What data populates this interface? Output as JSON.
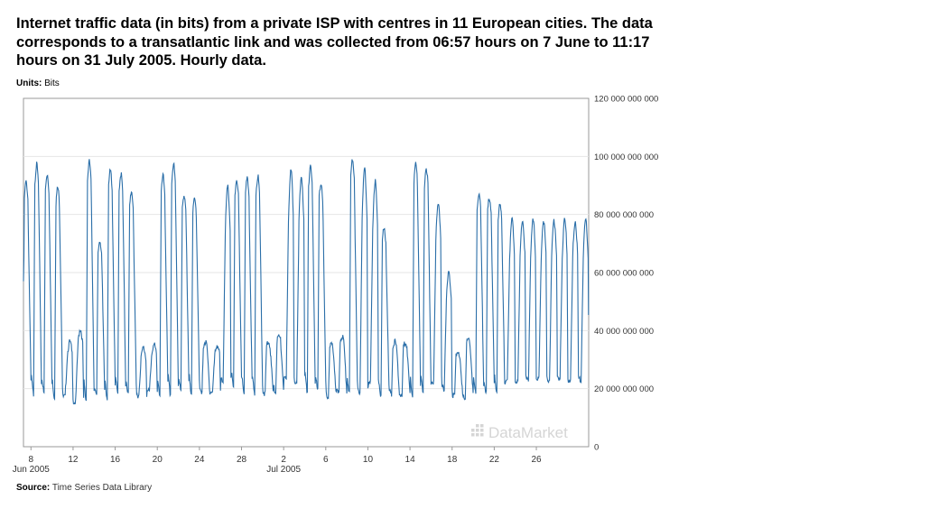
{
  "title": "Internet traffic data (in bits) from a private ISP with centres in 11 European cities. The data corresponds to a transatlantic link and was collected from 06:57 hours on 7 June to 11:17 hours on 31 July 2005. Hourly data.",
  "units_label": "Units:",
  "units_value": "Bits",
  "source_label": "Source:",
  "source_value": "Time Series Data Library",
  "watermark": "DataMarket",
  "colors": {
    "line": "#2a6ea8",
    "grid": "#e6e6e6",
    "axis": "#999999",
    "watermark": "#d5d5d5"
  },
  "chart_data": {
    "type": "line",
    "x_unit": "hours since 2005-06-07 06:57",
    "y_unit": "bits",
    "ylim": [
      0,
      120000000000
    ],
    "y_ticks": [
      0,
      20000000000,
      40000000000,
      60000000000,
      80000000000,
      100000000000,
      120000000000
    ],
    "y_tick_labels": [
      "0",
      "20 000 000 000",
      "40 000 000 000",
      "60 000 000 000",
      "80 000 000 000",
      "100 000 000 000",
      "120 000 000 000"
    ],
    "x_tick_labels": [
      "8",
      "12",
      "16",
      "20",
      "24",
      "28",
      "2",
      "6",
      "10",
      "14",
      "18",
      "22",
      "26"
    ],
    "x_tick_dates": [
      "2005-06-08",
      "2005-06-12",
      "2005-06-16",
      "2005-06-20",
      "2005-06-24",
      "2005-06-28",
      "2005-07-02",
      "2005-07-06",
      "2005-07-10",
      "2005-07-14",
      "2005-07-18",
      "2005-07-22",
      "2005-07-26"
    ],
    "x_group_labels": [
      {
        "label": "Jun 2005",
        "date": "2005-06-08"
      },
      {
        "label": "Jul 2005",
        "date": "2005-07-02"
      }
    ],
    "grid": true,
    "y_axis_side": "right",
    "series": [
      {
        "description": "Daily profile: peak (bits) and nightly trough (bits) for each day, 7 June - 31 July 2005",
        "daily_peak": [
          91000000000,
          97000000000,
          94000000000,
          89000000000,
          37000000000,
          42000000000,
          98000000000,
          71000000000,
          95000000000,
          94000000000,
          88000000000,
          35000000000,
          36000000000,
          93000000000,
          97000000000,
          87000000000,
          85000000000,
          36000000000,
          36000000000,
          93000000000,
          92000000000,
          92000000000,
          93000000000,
          36000000000,
          38000000000,
          99000000000,
          97000000000,
          96000000000,
          91000000000,
          35000000000,
          38000000000,
          99000000000,
          100000000000,
          95000000000,
          75000000000,
          36000000000,
          36000000000,
          97000000000,
          96000000000,
          88000000000,
          62000000000,
          33000000000,
          37000000000,
          87000000000,
          86000000000,
          83000000000,
          81000000000,
          81000000000
        ],
        "daily_trough": [
          19000000000,
          18000000000,
          18000000000,
          17000000000,
          16000000000,
          14000000000,
          16000000000,
          17000000000,
          17000000000,
          18000000000,
          18000000000,
          17000000000,
          18000000000,
          18000000000,
          18000000000,
          19000000000,
          19000000000,
          18000000000,
          18000000000,
          19000000000,
          20000000000,
          19000000000,
          18000000000,
          18000000000,
          19000000000,
          19000000000,
          19000000000,
          19000000000,
          19000000000,
          17000000000,
          18000000000,
          18000000000,
          15000000000,
          18000000000,
          18000000000,
          18000000000,
          17000000000,
          18000000000,
          18000000000,
          19000000000,
          18000000000,
          17000000000,
          17000000000,
          18000000000,
          18000000000,
          19000000000,
          19000000000,
          20000000000
        ],
        "start_value": 57000000000
      }
    ]
  }
}
